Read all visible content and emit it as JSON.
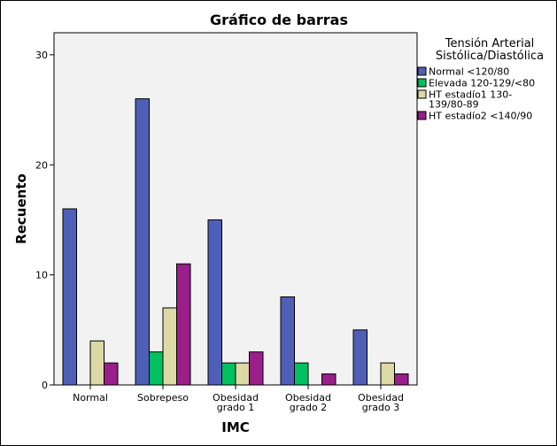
{
  "chart_data": {
    "type": "bar",
    "title": "Gráfico de barras",
    "xlabel": "IMC",
    "ylabel": "Recuento",
    "ylim": [
      0,
      32
    ],
    "yticks": [
      0,
      10,
      20,
      30
    ],
    "grid": false,
    "legend_placement": "right",
    "legend_title": [
      "Tensión Arterial",
      "Sistólica/Diastólica"
    ],
    "categories": [
      [
        "Normal"
      ],
      [
        "Sobrepeso"
      ],
      [
        "Obesidad",
        "grado 1"
      ],
      [
        "Obesidad",
        "grado 2"
      ],
      [
        "Obesidad",
        "grado 3"
      ]
    ],
    "series": [
      {
        "name": [
          "Normal  <120/80"
        ],
        "color": "#4f5fb8",
        "values": [
          16,
          26,
          15,
          8,
          5
        ]
      },
      {
        "name": [
          "Elevada 120-129/<80"
        ],
        "color": "#00c060",
        "values": [
          0,
          3,
          2,
          2,
          0
        ]
      },
      {
        "name": [
          "HT estadío1 130-",
          "139/80-89"
        ],
        "color": "#ddd9a6",
        "values": [
          4,
          7,
          2,
          0,
          2
        ]
      },
      {
        "name": [
          "HT estadío2 <140/90"
        ],
        "color": "#9a1f8a",
        "values": [
          2,
          11,
          3,
          1,
          1
        ]
      }
    ]
  }
}
